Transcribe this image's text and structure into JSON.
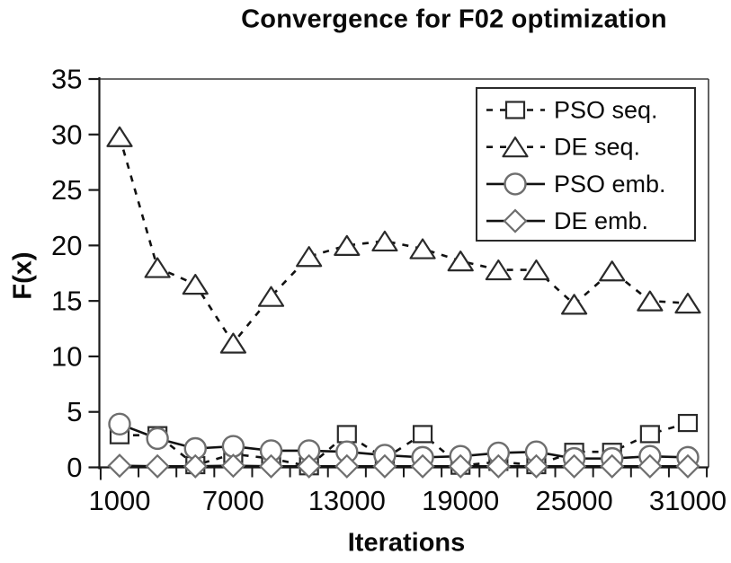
{
  "background": "#ffffff",
  "chart_data": {
    "type": "line",
    "title": "Convergence for F02 optimization",
    "xlabel": "Iterations",
    "ylabel": "F(x)",
    "x": [
      1000,
      3000,
      5000,
      7000,
      9000,
      11000,
      13000,
      15000,
      17000,
      19000,
      21000,
      23000,
      25000,
      27000,
      29000,
      31000
    ],
    "x_tick_labels": [
      "1000",
      "7000",
      "13000",
      "19000",
      "25000",
      "31000"
    ],
    "x_tick_values": [
      1000,
      7000,
      13000,
      19000,
      25000,
      31000
    ],
    "y_ticks": [
      0,
      5,
      10,
      15,
      20,
      25,
      30,
      35
    ],
    "ylim": [
      0,
      35
    ],
    "grid": false,
    "legend_position": "top-right",
    "legend_order": [
      "PSO seq.",
      "DE seq.",
      "PSO emb.",
      "DE emb."
    ],
    "ink_color": "#111111",
    "marker_fill": "#ffffff",
    "series": [
      {
        "name": "PSO seq.",
        "marker": "square",
        "line_style": "dashed",
        "line_color": "#111111",
        "marker_outline": "#2a2a2a",
        "values": [
          2.9,
          2.9,
          0.2,
          1.2,
          0.8,
          0.1,
          3.0,
          0.8,
          3.0,
          0.15,
          0.5,
          0.2,
          1.4,
          1.4,
          3.0,
          4.0
        ]
      },
      {
        "name": "DE seq.",
        "marker": "triangle",
        "line_style": "dashed",
        "line_color": "#111111",
        "marker_outline": "#2a2a2a",
        "values": [
          29.8,
          18.0,
          16.5,
          11.2,
          15.4,
          19.0,
          20.0,
          20.4,
          19.7,
          18.6,
          17.8,
          17.8,
          14.7,
          17.7,
          15.0,
          14.8
        ]
      },
      {
        "name": "PSO emb.",
        "marker": "circle",
        "line_style": "solid",
        "line_color": "#111111",
        "marker_outline": "#6e6e6e",
        "values": [
          3.9,
          2.6,
          1.7,
          1.9,
          1.5,
          1.5,
          1.4,
          1.1,
          0.9,
          1.0,
          1.3,
          1.4,
          0.8,
          0.8,
          1.0,
          0.9
        ]
      },
      {
        "name": "DE emb.",
        "marker": "diamond",
        "line_style": "solid",
        "line_color": "#111111",
        "marker_outline": "#6e6e6e",
        "values": [
          0.15,
          0.1,
          0.1,
          0.15,
          0.1,
          0.1,
          0.1,
          0.1,
          0.1,
          0.1,
          0.1,
          0.1,
          0.1,
          0.1,
          0.1,
          0.1
        ]
      }
    ]
  }
}
